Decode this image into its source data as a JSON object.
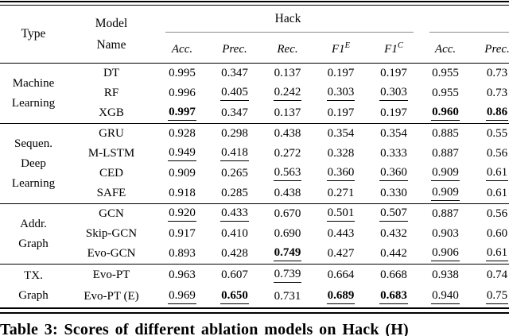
{
  "table": {
    "caption": "Table 3: Scores of different ablation models on Hack (H)",
    "header": {
      "type_label": "Type",
      "model_label_line1": "Model",
      "model_label_line2": "Name",
      "group1_label": "Hack",
      "group2_label": "",
      "subcolumns": [
        {
          "label": "Acc."
        },
        {
          "label": "Prec."
        },
        {
          "label": "Rec."
        },
        {
          "label": "F1",
          "sup": "E"
        },
        {
          "label": "F1",
          "sup": "C"
        },
        {
          "label": "Acc."
        },
        {
          "label": "Prec."
        }
      ]
    },
    "sections": [
      {
        "id": "machine-learning",
        "type_lines": [
          "Machine",
          "Learning"
        ],
        "rows": [
          {
            "model": "DT",
            "cells": [
              {
                "v": "0.995"
              },
              {
                "v": "0.347"
              },
              {
                "v": "0.137"
              },
              {
                "v": "0.197"
              },
              {
                "v": "0.197"
              },
              {
                "v": "0.955"
              },
              {
                "v": "0.73"
              }
            ]
          },
          {
            "model": "RF",
            "cells": [
              {
                "v": "0.996"
              },
              {
                "v": "0.405",
                "u": true
              },
              {
                "v": "0.242",
                "u": true
              },
              {
                "v": "0.303",
                "u": true
              },
              {
                "v": "0.303",
                "u": true
              },
              {
                "v": "0.955"
              },
              {
                "v": "0.73"
              }
            ]
          },
          {
            "model": "XGB",
            "cells": [
              {
                "v": "0.997",
                "b": true,
                "u": true
              },
              {
                "v": "0.347"
              },
              {
                "v": "0.137"
              },
              {
                "v": "0.197"
              },
              {
                "v": "0.197"
              },
              {
                "v": "0.960",
                "b": true,
                "u": true
              },
              {
                "v": "0.86",
                "b": true,
                "u": true
              }
            ]
          }
        ]
      },
      {
        "id": "sequen-deep-learning",
        "type_lines": [
          "Sequen.",
          "Deep",
          "Learning"
        ],
        "rows": [
          {
            "model": "GRU",
            "cells": [
              {
                "v": "0.928"
              },
              {
                "v": "0.298"
              },
              {
                "v": "0.438"
              },
              {
                "v": "0.354"
              },
              {
                "v": "0.354"
              },
              {
                "v": "0.885"
              },
              {
                "v": "0.55"
              }
            ]
          },
          {
            "model": "M-LSTM",
            "cells": [
              {
                "v": "0.949",
                "u": true
              },
              {
                "v": "0.418",
                "u": true
              },
              {
                "v": "0.272"
              },
              {
                "v": "0.328"
              },
              {
                "v": "0.333"
              },
              {
                "v": "0.887"
              },
              {
                "v": "0.56"
              }
            ]
          },
          {
            "model": "CED",
            "cells": [
              {
                "v": "0.909"
              },
              {
                "v": "0.265"
              },
              {
                "v": "0.563",
                "u": true
              },
              {
                "v": "0.360",
                "u": true
              },
              {
                "v": "0.360",
                "u": true
              },
              {
                "v": "0.909",
                "u": true
              },
              {
                "v": "0.61",
                "u": true
              }
            ]
          },
          {
            "model": "SAFE",
            "cells": [
              {
                "v": "0.918"
              },
              {
                "v": "0.285"
              },
              {
                "v": "0.438"
              },
              {
                "v": "0.271"
              },
              {
                "v": "0.330"
              },
              {
                "v": "0.909",
                "u": true
              },
              {
                "v": "0.61"
              }
            ]
          }
        ]
      },
      {
        "id": "addr-graph",
        "type_lines": [
          "Addr.",
          "Graph"
        ],
        "rows": [
          {
            "model": "GCN",
            "cells": [
              {
                "v": "0.920",
                "u": true
              },
              {
                "v": "0.433",
                "u": true
              },
              {
                "v": "0.670"
              },
              {
                "v": "0.501",
                "u": true
              },
              {
                "v": "0.507",
                "u": true
              },
              {
                "v": "0.887"
              },
              {
                "v": "0.56"
              }
            ]
          },
          {
            "model": "Skip-GCN",
            "cells": [
              {
                "v": "0.917"
              },
              {
                "v": "0.410"
              },
              {
                "v": "0.690"
              },
              {
                "v": "0.443"
              },
              {
                "v": "0.432"
              },
              {
                "v": "0.903"
              },
              {
                "v": "0.60"
              }
            ]
          },
          {
            "model": "Evo-GCN",
            "cells": [
              {
                "v": "0.893"
              },
              {
                "v": "0.428"
              },
              {
                "v": "0.749",
                "b": true,
                "u": true
              },
              {
                "v": "0.427"
              },
              {
                "v": "0.442"
              },
              {
                "v": "0.906",
                "u": true
              },
              {
                "v": "0.61",
                "u": true
              }
            ]
          }
        ]
      },
      {
        "id": "tx-graph",
        "type_lines": [
          "TX.",
          "Graph"
        ],
        "rows": [
          {
            "model": "Evo-PT",
            "cells": [
              {
                "v": "0.963"
              },
              {
                "v": "0.607"
              },
              {
                "v": "0.739",
                "u": true
              },
              {
                "v": "0.664"
              },
              {
                "v": "0.668"
              },
              {
                "v": "0.938"
              },
              {
                "v": "0.74"
              }
            ]
          },
          {
            "model": "Evo-PT (E)",
            "cells": [
              {
                "v": "0.969",
                "u": true
              },
              {
                "v": "0.650",
                "b": true,
                "u": true
              },
              {
                "v": "0.731"
              },
              {
                "v": "0.689",
                "b": true,
                "u": true
              },
              {
                "v": "0.683",
                "b": true,
                "u": true
              },
              {
                "v": "0.940",
                "u": true
              },
              {
                "v": "0.75",
                "u": true
              }
            ]
          }
        ]
      }
    ],
    "colors": {
      "text": "#000000",
      "rule": "#000000",
      "group_rule": "#8a8a8a",
      "background": "#ffffff"
    }
  }
}
